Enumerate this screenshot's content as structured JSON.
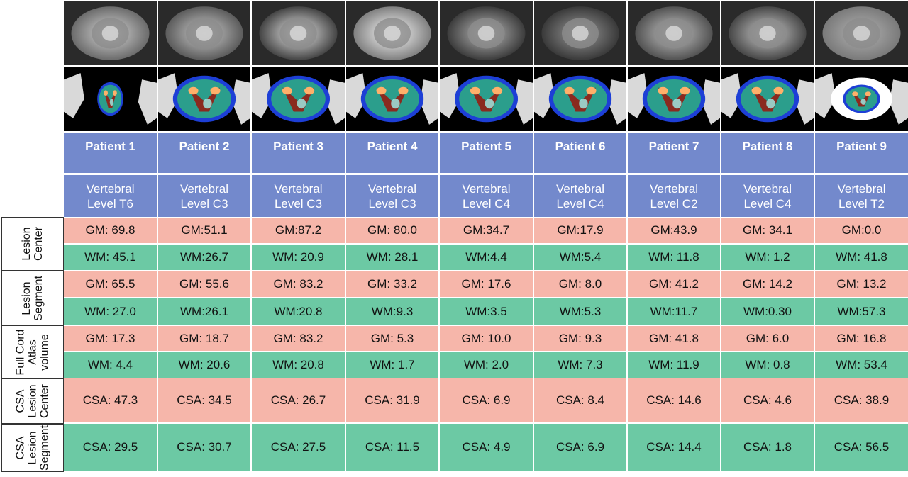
{
  "patients": [
    {
      "name": "Patient 1",
      "level": [
        "Vertebral",
        "Level T6"
      ]
    },
    {
      "name": "Patient 2",
      "level": [
        "Vertebral",
        "Level C3"
      ]
    },
    {
      "name": "Patient 3",
      "level": [
        "Vertebral",
        "Level C3"
      ]
    },
    {
      "name": "Patient 4",
      "level": [
        "Vertebral",
        "Level C3"
      ]
    },
    {
      "name": "Patient 5",
      "level": [
        "Vertebral",
        "Level C4"
      ]
    },
    {
      "name": "Patient 6",
      "level": [
        "Vertebral",
        "Level C4"
      ]
    },
    {
      "name": "Patient 7",
      "level": [
        "Vertebral",
        "Level C2"
      ]
    },
    {
      "name": "Patient 8",
      "level": [
        "Vertebral",
        "Level C4"
      ]
    },
    {
      "name": "Patient 9",
      "level": [
        "Vertebral",
        "Level T2"
      ]
    }
  ],
  "groups": [
    {
      "label": [
        "Lesion",
        "Center"
      ],
      "rows": [
        {
          "kind": "gm",
          "values": [
            "GM: 69.8",
            "GM:51.1",
            "GM:87.2",
            "GM: 80.0",
            "GM:34.7",
            "GM:17.9",
            "GM:43.9",
            "GM: 34.1",
            "GM:0.0"
          ]
        },
        {
          "kind": "wm",
          "values": [
            "WM: 45.1",
            "WM:26.7",
            "WM: 20.9",
            "WM: 28.1",
            "WM:4.4",
            "WM:5.4",
            "WM: 11.8",
            "WM: 1.2",
            "WM: 41.8"
          ]
        }
      ]
    },
    {
      "label": [
        "Lesion",
        "Segment"
      ],
      "rows": [
        {
          "kind": "gm",
          "values": [
            "GM: 65.5",
            "GM: 55.6",
            "GM: 83.2",
            "GM: 33.2",
            "GM: 17.6",
            "GM: 8.0",
            "GM: 41.2",
            "GM: 14.2",
            "GM: 13.2"
          ]
        },
        {
          "kind": "wm",
          "values": [
            "WM: 27.0",
            "WM:26.1",
            "WM:20.8",
            "WM:9.3",
            "WM:3.5",
            "WM:5.3",
            "WM:11.7",
            "WM:0.30",
            "WM:57.3"
          ]
        }
      ]
    },
    {
      "label": [
        "Full Cord",
        "Atlas",
        "volume"
      ],
      "rows": [
        {
          "kind": "gm",
          "values": [
            "GM: 17.3",
            "GM: 18.7",
            "GM: 83.2",
            "GM: 5.3",
            "GM: 10.0",
            "GM: 9.3",
            "GM: 41.8",
            "GM: 6.0",
            "GM: 16.8"
          ]
        },
        {
          "kind": "wm",
          "values": [
            "WM: 4.4",
            "WM: 20.6",
            "WM: 20.8",
            "WM: 1.7",
            "WM: 2.0",
            "WM: 7.3",
            "WM: 11.9",
            "WM: 0.8",
            "WM: 53.4"
          ]
        }
      ]
    },
    {
      "label": [
        "CSA",
        "Lesion",
        "Center"
      ],
      "rows": [
        {
          "kind": "gm",
          "values": [
            "CSA: 47.3",
            "CSA: 34.5",
            "CSA: 26.7",
            "CSA: 31.9",
            "CSA: 6.9",
            "CSA: 8.4",
            "CSA: 14.6",
            "CSA: 4.6",
            "CSA: 38.9"
          ]
        }
      ]
    },
    {
      "label": [
        "CSA",
        "Lesion",
        "Segment"
      ],
      "rows": [
        {
          "kind": "wm",
          "values": [
            "CSA: 29.5",
            "CSA: 30.7",
            "CSA: 27.5",
            "CSA: 11.5",
            "CSA: 4.9",
            "CSA: 6.9",
            "CSA: 14.4",
            "CSA: 1.8",
            "CSA: 56.5"
          ]
        }
      ]
    }
  ],
  "colors": {
    "header": "#7389cc",
    "gm_row": "#f6b6aa",
    "wm_row": "#6cc9a4",
    "atlas_outer": "#1d3fd6",
    "atlas_wm": "#2b9e8c",
    "atlas_gm": "#ffb06a"
  },
  "icons": {
    "mri": "mri-axial-slice-icon",
    "overlay": "atlas-overlay-icon"
  }
}
